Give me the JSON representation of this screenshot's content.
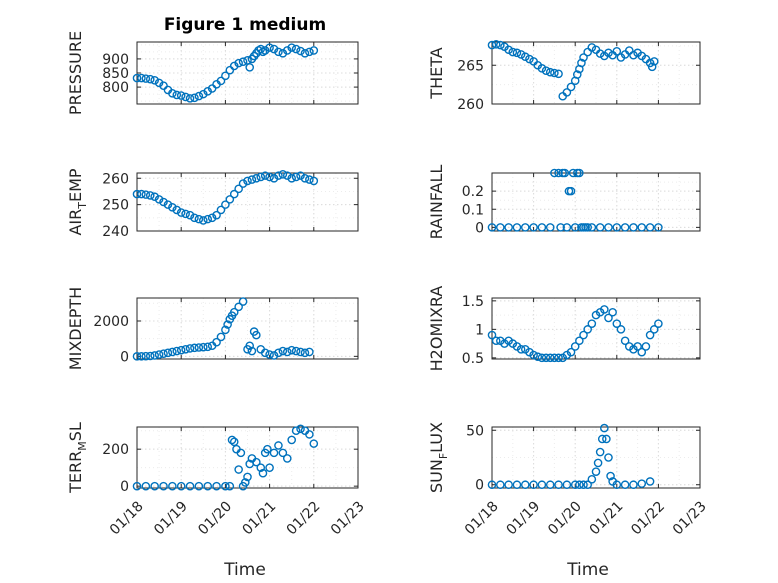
{
  "figure_title": "Figure 1 medium",
  "x_axis": {
    "label": "Time",
    "tick_labels": [
      "01/18",
      "01/19",
      "01/20",
      "01/21",
      "01/22",
      "01/23"
    ],
    "range": [
      "01/18",
      "01/23"
    ]
  },
  "colors": {
    "marker": "#0072bd",
    "axes": "#262626",
    "grid": "#dcdcdc"
  },
  "chart_data": [
    {
      "type": "scatter",
      "title": "Figure 1 medium",
      "ylabel": "PRESSURE",
      "ylim": [
        740,
        960
      ],
      "yticks": [
        800,
        850,
        900
      ],
      "xlim": [
        0,
        5
      ],
      "grid": "on",
      "marker": "open-circle",
      "x": [
        0.0,
        0.1,
        0.2,
        0.3,
        0.4,
        0.5,
        0.6,
        0.7,
        0.8,
        0.9,
        1.0,
        1.1,
        1.2,
        1.3,
        1.4,
        1.5,
        1.6,
        1.7,
        1.8,
        1.9,
        2.0,
        2.1,
        2.2,
        2.3,
        2.4,
        2.5,
        2.55,
        2.6,
        2.65,
        2.7,
        2.75,
        2.8,
        2.85,
        2.9,
        3.0,
        3.1,
        3.2,
        3.3,
        3.4,
        3.5,
        3.6,
        3.7,
        3.8,
        3.9,
        4.0
      ],
      "y": [
        832,
        832,
        830,
        828,
        824,
        815,
        805,
        790,
        778,
        772,
        770,
        765,
        760,
        762,
        768,
        775,
        785,
        795,
        810,
        822,
        840,
        860,
        875,
        885,
        890,
        895,
        870,
        900,
        910,
        920,
        930,
        935,
        925,
        930,
        940,
        935,
        925,
        920,
        930,
        940,
        935,
        928,
        920,
        925,
        930
      ]
    },
    {
      "type": "scatter",
      "ylabel": "THETA",
      "ylim": [
        260,
        268
      ],
      "yticks": [
        260,
        265
      ],
      "xlim": [
        0,
        5
      ],
      "grid": "on",
      "marker": "open-circle",
      "x": [
        0.0,
        0.1,
        0.2,
        0.3,
        0.4,
        0.5,
        0.6,
        0.7,
        0.8,
        0.9,
        1.0,
        1.1,
        1.2,
        1.3,
        1.4,
        1.5,
        1.6,
        1.7,
        1.8,
        1.9,
        2.0,
        2.05,
        2.1,
        2.15,
        2.2,
        2.3,
        2.4,
        2.5,
        2.6,
        2.7,
        2.8,
        2.9,
        3.0,
        3.1,
        3.2,
        3.3,
        3.4,
        3.5,
        3.6,
        3.7,
        3.8,
        3.85,
        3.9
      ],
      "y": [
        267.6,
        267.7,
        267.6,
        267.4,
        267.0,
        266.7,
        266.6,
        266.4,
        266.1,
        265.8,
        265.5,
        265.0,
        264.6,
        264.3,
        264.1,
        264.0,
        263.9,
        261.0,
        261.5,
        262.2,
        263.0,
        263.8,
        264.5,
        265.3,
        266.0,
        266.7,
        267.3,
        267.0,
        266.5,
        266.2,
        266.6,
        266.3,
        266.8,
        266.0,
        266.4,
        266.9,
        266.3,
        266.6,
        266.2,
        265.8,
        265.3,
        264.8,
        265.5
      ]
    },
    {
      "type": "scatter",
      "ylabel": "AIR_TEMP",
      "ylim": [
        240,
        262
      ],
      "yticks": [
        240,
        250,
        260
      ],
      "xlim": [
        0,
        5
      ],
      "grid": "on",
      "marker": "open-circle",
      "x": [
        0.0,
        0.1,
        0.2,
        0.3,
        0.4,
        0.5,
        0.6,
        0.7,
        0.8,
        0.9,
        1.0,
        1.1,
        1.2,
        1.3,
        1.4,
        1.5,
        1.6,
        1.7,
        1.8,
        1.9,
        2.0,
        2.1,
        2.2,
        2.3,
        2.4,
        2.5,
        2.6,
        2.7,
        2.8,
        2.9,
        3.0,
        3.1,
        3.2,
        3.3,
        3.4,
        3.5,
        3.6,
        3.7,
        3.8,
        3.9,
        4.0
      ],
      "y": [
        254,
        254,
        253.8,
        253.5,
        253,
        252,
        251,
        250,
        249,
        248,
        247,
        246.5,
        246,
        245,
        244.5,
        244,
        244.5,
        245,
        246,
        248,
        250,
        252,
        254,
        256,
        258,
        259,
        259.5,
        260,
        260.5,
        261,
        260.5,
        260,
        261,
        261.5,
        261,
        260,
        260.5,
        261,
        260,
        259.5,
        259
      ]
    },
    {
      "type": "scatter",
      "ylabel": "RAINFALL",
      "ylim": [
        -0.02,
        0.3
      ],
      "yticks": [
        0,
        0.1,
        0.2
      ],
      "xlim": [
        0,
        5
      ],
      "grid": "on",
      "marker": "open-circle",
      "x": [
        0.0,
        0.2,
        0.4,
        0.6,
        0.8,
        1.0,
        1.2,
        1.4,
        1.5,
        1.6,
        1.65,
        1.7,
        1.75,
        1.8,
        1.85,
        1.9,
        1.95,
        2.0,
        2.05,
        2.1,
        2.15,
        2.2,
        2.25,
        2.3,
        2.4,
        2.6,
        2.8,
        3.0,
        3.2,
        3.4,
        3.6,
        3.8,
        4.0
      ],
      "y": [
        0,
        0,
        0,
        0,
        0,
        0,
        0,
        0,
        0.3,
        0.3,
        0,
        0.3,
        0.3,
        0,
        0.2,
        0.2,
        0.3,
        0,
        0.3,
        0.3,
        0,
        0,
        0,
        0,
        0,
        0,
        0,
        0,
        0,
        0,
        0,
        0,
        0
      ]
    },
    {
      "type": "scatter",
      "ylabel": "MIXDEPTH",
      "ylim": [
        -150,
        3300
      ],
      "yticks": [
        0,
        2000
      ],
      "xlim": [
        0,
        5
      ],
      "grid": "on",
      "marker": "open-circle",
      "x": [
        0.0,
        0.1,
        0.2,
        0.3,
        0.4,
        0.5,
        0.6,
        0.7,
        0.8,
        0.9,
        1.0,
        1.1,
        1.2,
        1.3,
        1.4,
        1.5,
        1.6,
        1.7,
        1.8,
        1.9,
        2.0,
        2.05,
        2.1,
        2.15,
        2.2,
        2.3,
        2.4,
        2.5,
        2.55,
        2.6,
        2.65,
        2.7,
        2.8,
        2.9,
        3.0,
        3.1,
        3.2,
        3.3,
        3.4,
        3.5,
        3.6,
        3.7,
        3.8,
        3.9
      ],
      "y": [
        0,
        0,
        10,
        20,
        50,
        100,
        150,
        200,
        250,
        300,
        350,
        400,
        450,
        480,
        500,
        520,
        540,
        600,
        800,
        1100,
        1500,
        1800,
        2100,
        2300,
        2500,
        2800,
        3100,
        400,
        600,
        300,
        1400,
        1200,
        400,
        200,
        100,
        50,
        200,
        300,
        250,
        350,
        300,
        250,
        200,
        250
      ]
    },
    {
      "type": "scatter",
      "ylabel": "H2OMIXRA",
      "ylim": [
        0.48,
        1.55
      ],
      "yticks": [
        0.5,
        1,
        1.5
      ],
      "xlim": [
        0,
        5
      ],
      "grid": "on",
      "marker": "open-circle",
      "x": [
        0.0,
        0.1,
        0.2,
        0.3,
        0.4,
        0.5,
        0.6,
        0.7,
        0.8,
        0.9,
        1.0,
        1.1,
        1.2,
        1.3,
        1.4,
        1.5,
        1.6,
        1.7,
        1.8,
        1.9,
        2.0,
        2.1,
        2.2,
        2.3,
        2.4,
        2.5,
        2.6,
        2.7,
        2.8,
        2.9,
        3.0,
        3.1,
        3.2,
        3.3,
        3.4,
        3.5,
        3.6,
        3.7,
        3.8,
        3.9,
        4.0
      ],
      "y": [
        0.9,
        0.8,
        0.8,
        0.75,
        0.8,
        0.75,
        0.7,
        0.65,
        0.65,
        0.6,
        0.55,
        0.52,
        0.5,
        0.5,
        0.5,
        0.5,
        0.5,
        0.5,
        0.55,
        0.6,
        0.7,
        0.8,
        0.9,
        1.0,
        1.1,
        1.25,
        1.3,
        1.35,
        1.2,
        1.3,
        1.1,
        1.0,
        0.8,
        0.7,
        0.65,
        0.7,
        0.6,
        0.7,
        0.9,
        1.0,
        1.1
      ]
    },
    {
      "type": "scatter",
      "ylabel": "TERR_MSL",
      "ylim": [
        -10,
        320
      ],
      "yticks": [
        0,
        200
      ],
      "xlim": [
        0,
        5
      ],
      "grid": "on",
      "marker": "open-circle",
      "x": [
        0.0,
        0.2,
        0.4,
        0.6,
        0.8,
        1.0,
        1.2,
        1.4,
        1.6,
        1.8,
        2.0,
        2.1,
        2.15,
        2.2,
        2.25,
        2.3,
        2.35,
        2.4,
        2.45,
        2.5,
        2.55,
        2.6,
        2.7,
        2.8,
        2.85,
        2.9,
        2.95,
        3.0,
        3.1,
        3.2,
        3.3,
        3.4,
        3.5,
        3.6,
        3.7,
        3.8,
        3.9,
        4.0
      ],
      "y": [
        0,
        0,
        0,
        0,
        0,
        0,
        0,
        0,
        0,
        0,
        0,
        0,
        250,
        240,
        200,
        90,
        180,
        0,
        20,
        50,
        120,
        150,
        130,
        100,
        70,
        180,
        200,
        100,
        180,
        220,
        180,
        150,
        250,
        300,
        310,
        300,
        280,
        230
      ]
    },
    {
      "type": "scatter",
      "ylabel": "SUN_FLUX",
      "ylim": [
        -3,
        53
      ],
      "yticks": [
        0,
        50
      ],
      "xlim": [
        0,
        5
      ],
      "grid": "on",
      "marker": "open-circle",
      "x": [
        0.0,
        0.2,
        0.4,
        0.6,
        0.8,
        1.0,
        1.2,
        1.4,
        1.6,
        1.8,
        2.0,
        2.1,
        2.2,
        2.3,
        2.4,
        2.5,
        2.55,
        2.6,
        2.65,
        2.7,
        2.75,
        2.8,
        2.85,
        2.9,
        3.0,
        3.2,
        3.4,
        3.6,
        3.8
      ],
      "y": [
        0,
        0,
        0,
        0,
        0,
        0,
        0,
        0,
        0,
        0,
        0,
        0,
        0,
        0,
        5,
        12,
        20,
        30,
        42,
        52,
        42,
        25,
        8,
        3,
        0,
        0,
        0,
        1,
        3
      ]
    }
  ]
}
